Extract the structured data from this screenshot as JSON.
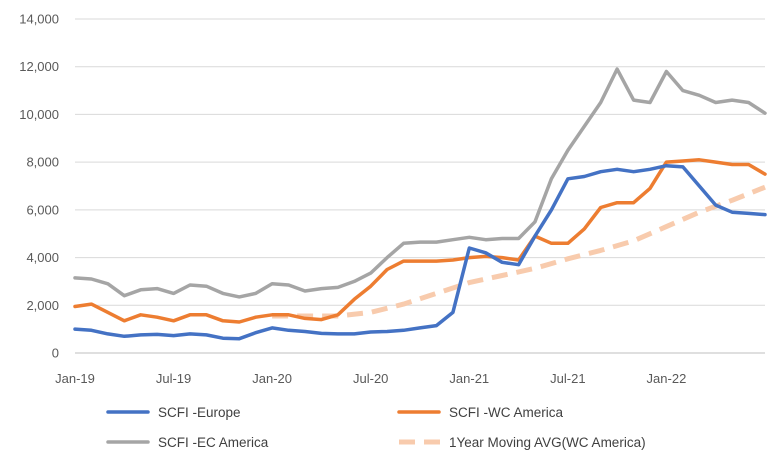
{
  "chart_data": {
    "type": "line",
    "title": "",
    "xlabel": "",
    "ylabel": "",
    "ylim": [
      0,
      14000
    ],
    "yticks": [
      0,
      2000,
      4000,
      6000,
      8000,
      10000,
      12000,
      14000
    ],
    "ytick_labels": [
      "0",
      "2,000",
      "4,000",
      "6,000",
      "8,000",
      "10,000",
      "12,000",
      "14,000"
    ],
    "xticks": [
      "2019-01",
      "2019-07",
      "2020-01",
      "2020-07",
      "2021-01",
      "2021-07",
      "2022-01"
    ],
    "xtick_labels": [
      "Jan-19",
      "Jul-19",
      "Jan-20",
      "Jul-20",
      "Jan-21",
      "Jul-21",
      "Jan-22"
    ],
    "xlim": [
      "2019-01",
      "2022-07"
    ],
    "grid": "horizontal",
    "legend_position": "bottom",
    "series": [
      {
        "name": "SCFI -Europe",
        "color": "#4472C4",
        "style": "solid",
        "points": [
          [
            "2019-01",
            1000
          ],
          [
            "2019-02",
            950
          ],
          [
            "2019-03",
            800
          ],
          [
            "2019-04",
            700
          ],
          [
            "2019-05",
            760
          ],
          [
            "2019-06",
            780
          ],
          [
            "2019-07",
            730
          ],
          [
            "2019-08",
            800
          ],
          [
            "2019-09",
            760
          ],
          [
            "2019-10",
            620
          ],
          [
            "2019-11",
            600
          ],
          [
            "2019-12",
            850
          ],
          [
            "2020-01",
            1050
          ],
          [
            "2020-02",
            950
          ],
          [
            "2020-03",
            900
          ],
          [
            "2020-04",
            820
          ],
          [
            "2020-05",
            800
          ],
          [
            "2020-06",
            800
          ],
          [
            "2020-07",
            880
          ],
          [
            "2020-08",
            900
          ],
          [
            "2020-09",
            950
          ],
          [
            "2020-10",
            1050
          ],
          [
            "2020-11",
            1150
          ],
          [
            "2020-12",
            1700
          ],
          [
            "2021-01",
            4400
          ],
          [
            "2021-02",
            4200
          ],
          [
            "2021-03",
            3800
          ],
          [
            "2021-04",
            3700
          ],
          [
            "2021-05",
            4900
          ],
          [
            "2021-06",
            6000
          ],
          [
            "2021-07",
            7300
          ],
          [
            "2021-08",
            7400
          ],
          [
            "2021-09",
            7600
          ],
          [
            "2021-10",
            7700
          ],
          [
            "2021-11",
            7600
          ],
          [
            "2021-12",
            7700
          ],
          [
            "2022-01",
            7850
          ],
          [
            "2022-02",
            7800
          ],
          [
            "2022-03",
            7000
          ],
          [
            "2022-04",
            6200
          ],
          [
            "2022-05",
            5900
          ],
          [
            "2022-06",
            5850
          ],
          [
            "2022-07",
            5800
          ]
        ]
      },
      {
        "name": "SCFI -WC America",
        "color": "#ED7D31",
        "style": "solid",
        "points": [
          [
            "2019-01",
            1950
          ],
          [
            "2019-02",
            2050
          ],
          [
            "2019-03",
            1700
          ],
          [
            "2019-04",
            1350
          ],
          [
            "2019-05",
            1600
          ],
          [
            "2019-06",
            1500
          ],
          [
            "2019-07",
            1350
          ],
          [
            "2019-08",
            1600
          ],
          [
            "2019-09",
            1600
          ],
          [
            "2019-10",
            1350
          ],
          [
            "2019-11",
            1300
          ],
          [
            "2019-12",
            1500
          ],
          [
            "2020-01",
            1600
          ],
          [
            "2020-02",
            1600
          ],
          [
            "2020-03",
            1450
          ],
          [
            "2020-04",
            1400
          ],
          [
            "2020-05",
            1600
          ],
          [
            "2020-06",
            2250
          ],
          [
            "2020-07",
            2800
          ],
          [
            "2020-08",
            3500
          ],
          [
            "2020-09",
            3850
          ],
          [
            "2020-10",
            3850
          ],
          [
            "2020-11",
            3850
          ],
          [
            "2020-12",
            3900
          ],
          [
            "2021-01",
            4000
          ],
          [
            "2021-02",
            4050
          ],
          [
            "2021-03",
            4000
          ],
          [
            "2021-04",
            3900
          ],
          [
            "2021-05",
            4900
          ],
          [
            "2021-06",
            4600
          ],
          [
            "2021-07",
            4600
          ],
          [
            "2021-08",
            5200
          ],
          [
            "2021-09",
            6100
          ],
          [
            "2021-10",
            6300
          ],
          [
            "2021-11",
            6300
          ],
          [
            "2021-12",
            6900
          ],
          [
            "2022-01",
            8000
          ],
          [
            "2022-02",
            8050
          ],
          [
            "2022-03",
            8100
          ],
          [
            "2022-04",
            8000
          ],
          [
            "2022-05",
            7900
          ],
          [
            "2022-06",
            7900
          ],
          [
            "2022-07",
            7500
          ]
        ]
      },
      {
        "name": "SCFI -EC America",
        "color": "#A5A5A5",
        "style": "solid",
        "points": [
          [
            "2019-01",
            3150
          ],
          [
            "2019-02",
            3100
          ],
          [
            "2019-03",
            2900
          ],
          [
            "2019-04",
            2400
          ],
          [
            "2019-05",
            2650
          ],
          [
            "2019-06",
            2700
          ],
          [
            "2019-07",
            2500
          ],
          [
            "2019-08",
            2850
          ],
          [
            "2019-09",
            2800
          ],
          [
            "2019-10",
            2500
          ],
          [
            "2019-11",
            2350
          ],
          [
            "2019-12",
            2500
          ],
          [
            "2020-01",
            2900
          ],
          [
            "2020-02",
            2850
          ],
          [
            "2020-03",
            2600
          ],
          [
            "2020-04",
            2700
          ],
          [
            "2020-05",
            2750
          ],
          [
            "2020-06",
            3000
          ],
          [
            "2020-07",
            3350
          ],
          [
            "2020-08",
            4000
          ],
          [
            "2020-09",
            4600
          ],
          [
            "2020-10",
            4650
          ],
          [
            "2020-11",
            4650
          ],
          [
            "2020-12",
            4750
          ],
          [
            "2021-01",
            4850
          ],
          [
            "2021-02",
            4750
          ],
          [
            "2021-03",
            4800
          ],
          [
            "2021-04",
            4800
          ],
          [
            "2021-05",
            5500
          ],
          [
            "2021-06",
            7300
          ],
          [
            "2021-07",
            8500
          ],
          [
            "2021-08",
            9500
          ],
          [
            "2021-09",
            10500
          ],
          [
            "2021-10",
            11900
          ],
          [
            "2021-11",
            10600
          ],
          [
            "2021-12",
            10500
          ],
          [
            "2022-01",
            11800
          ],
          [
            "2022-02",
            11000
          ],
          [
            "2022-03",
            10800
          ],
          [
            "2022-04",
            10500
          ],
          [
            "2022-05",
            10600
          ],
          [
            "2022-06",
            10500
          ],
          [
            "2022-07",
            10050
          ]
        ]
      },
      {
        "name": "1Year Moving AVG(WC America)",
        "color": "#F8CBAD",
        "style": "dashed",
        "points": [
          [
            "2020-01",
            1550
          ],
          [
            "2020-03",
            1550
          ],
          [
            "2020-05",
            1550
          ],
          [
            "2020-07",
            1700
          ],
          [
            "2020-09",
            2050
          ],
          [
            "2020-11",
            2500
          ],
          [
            "2021-01",
            2950
          ],
          [
            "2021-03",
            3250
          ],
          [
            "2021-05",
            3550
          ],
          [
            "2021-07",
            3950
          ],
          [
            "2021-09",
            4300
          ],
          [
            "2021-11",
            4700
          ],
          [
            "2022-01",
            5300
          ],
          [
            "2022-03",
            5900
          ],
          [
            "2022-05",
            6400
          ],
          [
            "2022-07",
            6950
          ]
        ]
      }
    ]
  }
}
